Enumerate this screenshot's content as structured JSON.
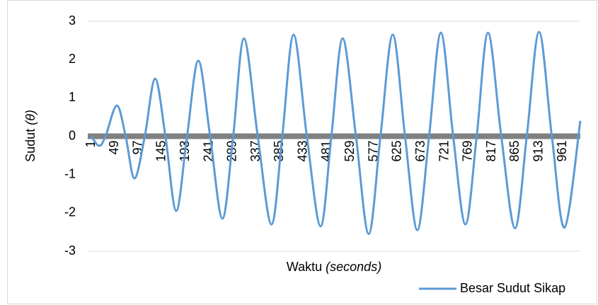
{
  "chart_data": {
    "type": "line",
    "xlabel": "Waktu",
    "xlabel_unit": "(seconds)",
    "ylabel": "Sudut",
    "ylabel_symbol": "(θ)",
    "xlim": [
      1,
      997
    ],
    "xticks": [
      1,
      49,
      97,
      145,
      193,
      241,
      289,
      337,
      385,
      433,
      481,
      529,
      577,
      625,
      673,
      721,
      769,
      817,
      865,
      913,
      961
    ],
    "ylim": [
      -3,
      3
    ],
    "yticks": [
      -3,
      -2,
      -1,
      0,
      1,
      2,
      3
    ],
    "grid": false,
    "legend": "bottom-right",
    "x": [
      1,
      17,
      30,
      53,
      71,
      89,
      110,
      131,
      152,
      174,
      196,
      219,
      243,
      268,
      290,
      312,
      340,
      368,
      390,
      413,
      440,
      468,
      490,
      513,
      540,
      566,
      590,
      615,
      640,
      665,
      689,
      713,
      738,
      763,
      786,
      809,
      836,
      864,
      888,
      913,
      939,
      965,
      997
    ],
    "series": [
      {
        "name": "Besar Sudut Sikap",
        "color": "#5b9bd5",
        "values": [
          0,
          -0.25,
          0,
          0.8,
          0,
          -1.1,
          0,
          1.5,
          0,
          -1.95,
          0,
          1.97,
          0,
          -2.15,
          0,
          2.55,
          0,
          -2.3,
          0,
          2.65,
          0,
          -2.35,
          0,
          2.55,
          0,
          -2.55,
          0,
          2.65,
          0,
          -2.45,
          0,
          2.7,
          0,
          -2.3,
          0,
          2.7,
          0,
          -2.4,
          0,
          2.72,
          0,
          -2.38,
          0.4
        ]
      }
    ]
  }
}
